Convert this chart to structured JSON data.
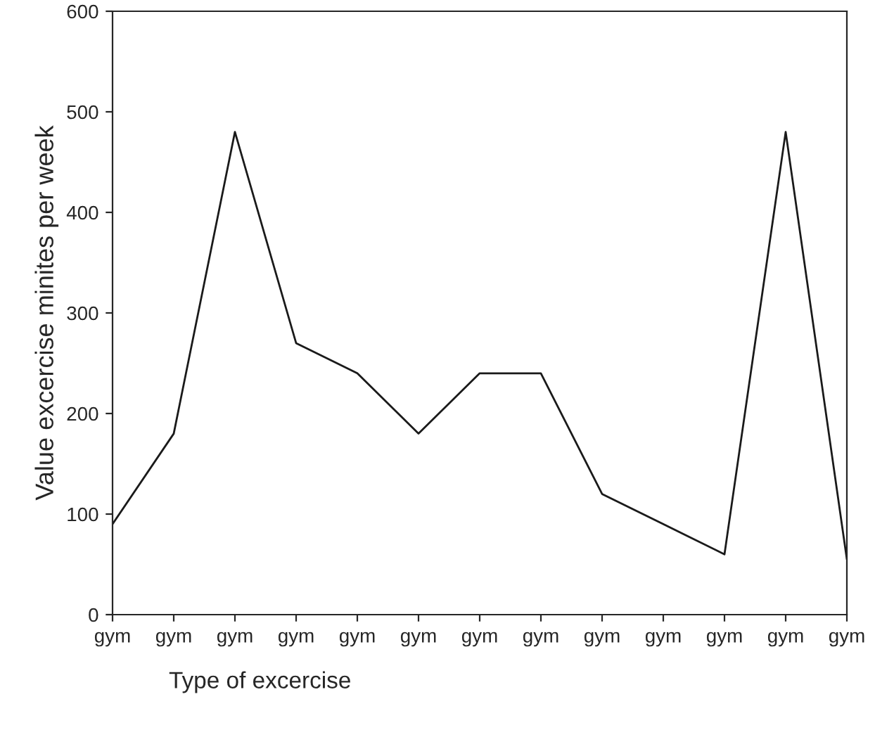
{
  "chart_data": {
    "type": "line",
    "xlabel": "Type of excercise",
    "ylabel": "Value excercise minites per week",
    "categories": [
      "gym",
      "gym",
      "gym",
      "gym",
      "gym",
      "gym",
      "gym",
      "gym",
      "gym",
      "gym",
      "gym",
      "gym",
      "gym"
    ],
    "series": [
      {
        "color": "#1a1a1a",
        "values": [
          90,
          180,
          480,
          270,
          240,
          180,
          240,
          240,
          120,
          90,
          60,
          480,
          55
        ]
      }
    ],
    "ylim": [
      0,
      600
    ],
    "yticks": [
      0,
      100,
      200,
      300,
      400,
      500,
      600
    ],
    "grid": false,
    "legend": false
  }
}
